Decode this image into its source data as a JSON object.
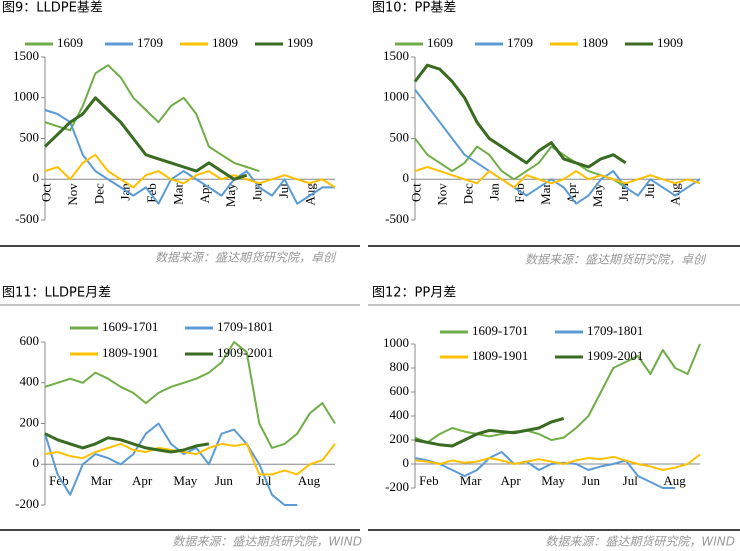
{
  "chart_data": [
    {
      "type": "line",
      "title": "图9：LLDPE基差",
      "source": "数据来源：盛达期货研究院，卓创",
      "xtick_labels": [
        "Oct",
        "Nov",
        "Dec",
        "Jan",
        "Feb",
        "Mar",
        "Apr",
        "May",
        "Jun",
        "Jul",
        "Aug"
      ],
      "ylim": [
        -500,
        1500
      ],
      "yticks": [
        -500,
        0,
        500,
        1000,
        1500
      ],
      "rotate_x_labels": true,
      "series": [
        {
          "name": "1609",
          "color": "#70ad47",
          "values": [
            700,
            650,
            600,
            900,
            1300,
            1400,
            1250,
            1000,
            850,
            700,
            900,
            1000,
            800,
            400,
            300,
            200,
            150,
            100,
            null,
            null,
            null,
            null,
            null,
            null
          ]
        },
        {
          "name": "1709",
          "color": "#5b9bd5",
          "values": [
            850,
            800,
            700,
            300,
            100,
            0,
            -100,
            -200,
            -100,
            -300,
            0,
            100,
            0,
            -100,
            -200,
            0,
            100,
            -100,
            -200,
            0,
            -300,
            -200,
            -100,
            -100
          ]
        },
        {
          "name": "1809",
          "color": "#ffc000",
          "values": [
            100,
            150,
            0,
            200,
            300,
            100,
            0,
            -100,
            50,
            100,
            0,
            -50,
            50,
            100,
            0,
            50,
            0,
            -50,
            0,
            50,
            0,
            -50,
            0,
            -100
          ]
        },
        {
          "name": "1909",
          "color": "#3a6b22",
          "values": [
            400,
            550,
            700,
            800,
            1000,
            850,
            700,
            500,
            300,
            250,
            200,
            150,
            100,
            200,
            100,
            0,
            50,
            null,
            null,
            null,
            null,
            null,
            null,
            null
          ]
        }
      ]
    },
    {
      "type": "line",
      "title": "图10：PP基差",
      "source": "数据来源：盛达期货研究院，卓创",
      "xtick_labels": [
        "Oct",
        "Nov",
        "Dec",
        "Jan",
        "Feb",
        "Mar",
        "Apr",
        "May",
        "Jun",
        "Jul",
        "Aug"
      ],
      "ylim": [
        -500,
        1500
      ],
      "yticks": [
        -500,
        0,
        500,
        1000,
        1500
      ],
      "rotate_x_labels": true,
      "series": [
        {
          "name": "1609",
          "color": "#70ad47",
          "values": [
            500,
            300,
            200,
            100,
            200,
            400,
            300,
            100,
            0,
            100,
            200,
            400,
            300,
            200,
            100,
            50,
            0,
            -100,
            null,
            null,
            null,
            null,
            null,
            null
          ]
        },
        {
          "name": "1709",
          "color": "#5b9bd5",
          "values": [
            1100,
            900,
            700,
            500,
            300,
            200,
            100,
            0,
            -100,
            -200,
            -100,
            0,
            -100,
            -300,
            -200,
            0,
            100,
            -100,
            -200,
            0,
            -100,
            -200,
            -100,
            0
          ]
        },
        {
          "name": "1809",
          "color": "#ffc000",
          "values": [
            100,
            150,
            100,
            50,
            0,
            -50,
            100,
            0,
            -100,
            50,
            0,
            -50,
            0,
            100,
            0,
            50,
            0,
            -50,
            0,
            50,
            0,
            -50,
            0,
            -50
          ]
        },
        {
          "name": "1909",
          "color": "#3a6b22",
          "values": [
            1200,
            1400,
            1350,
            1200,
            1000,
            700,
            500,
            400,
            300,
            200,
            350,
            450,
            250,
            200,
            150,
            250,
            300,
            200,
            null,
            null,
            null,
            null,
            null,
            null
          ]
        }
      ]
    },
    {
      "type": "line",
      "title": "图11：LLDPE月差",
      "source": "数据来源：盛达期货研究院，WIND",
      "xtick_labels": [
        "Feb",
        "Mar",
        "Apr",
        "May",
        "Jun",
        "Jul",
        "Aug"
      ],
      "ylim": [
        -200,
        600
      ],
      "yticks": [
        -200,
        0,
        200,
        400,
        600
      ],
      "rotate_x_labels": false,
      "series": [
        {
          "name": "1609-1701",
          "color": "#70ad47",
          "values": [
            380,
            400,
            420,
            400,
            450,
            420,
            380,
            350,
            300,
            350,
            380,
            400,
            420,
            450,
            500,
            600,
            550,
            200,
            80,
            100,
            150,
            250,
            300,
            200
          ]
        },
        {
          "name": "1709-1801",
          "color": "#5b9bd5",
          "values": [
            150,
            -50,
            -150,
            0,
            50,
            30,
            0,
            50,
            150,
            200,
            100,
            50,
            80,
            0,
            150,
            170,
            100,
            0,
            -150,
            -200,
            -200,
            null,
            null,
            null
          ]
        },
        {
          "name": "1809-1901",
          "color": "#ffc000",
          "values": [
            50,
            60,
            40,
            30,
            60,
            80,
            100,
            70,
            60,
            80,
            70,
            60,
            50,
            80,
            100,
            90,
            100,
            -50,
            -50,
            -30,
            -50,
            0,
            20,
            100
          ]
        },
        {
          "name": "1909-2001",
          "color": "#3a6b22",
          "values": [
            150,
            120,
            100,
            80,
            100,
            130,
            120,
            100,
            80,
            70,
            60,
            70,
            90,
            100,
            null,
            null,
            null,
            null,
            null,
            null,
            null,
            null,
            null,
            null
          ]
        }
      ]
    },
    {
      "type": "line",
      "title": "图12：PP月差",
      "source": "数据来源：盛达期货研究院，WIND",
      "xtick_labels": [
        "Feb",
        "Mar",
        "Apr",
        "May",
        "Jun",
        "Jul",
        "Aug"
      ],
      "ylim": [
        -200,
        1000
      ],
      "yticks": [
        -200,
        0,
        200,
        400,
        600,
        800,
        1000
      ],
      "rotate_x_labels": false,
      "series": [
        {
          "name": "1609-1701",
          "color": "#70ad47",
          "values": [
            220,
            180,
            250,
            300,
            270,
            250,
            230,
            250,
            270,
            280,
            250,
            200,
            220,
            300,
            400,
            600,
            800,
            850,
            900,
            750,
            950,
            800,
            750,
            1000
          ]
        },
        {
          "name": "1709-1801",
          "color": "#5b9bd5",
          "values": [
            50,
            30,
            0,
            -50,
            -100,
            -50,
            50,
            100,
            0,
            20,
            -50,
            0,
            10,
            0,
            -50,
            -20,
            0,
            30,
            -100,
            -150,
            -200,
            -200,
            null,
            null
          ]
        },
        {
          "name": "1809-1901",
          "color": "#ffc000",
          "values": [
            30,
            20,
            0,
            30,
            10,
            20,
            50,
            30,
            0,
            20,
            40,
            20,
            0,
            30,
            50,
            40,
            60,
            30,
            0,
            -20,
            -50,
            -30,
            0,
            80
          ]
        },
        {
          "name": "1909-2001",
          "color": "#3a6b22",
          "values": [
            200,
            180,
            160,
            150,
            200,
            250,
            280,
            270,
            260,
            280,
            300,
            350,
            380,
            null,
            null,
            null,
            null,
            null,
            null,
            null,
            null,
            null,
            null,
            null
          ]
        }
      ]
    }
  ]
}
